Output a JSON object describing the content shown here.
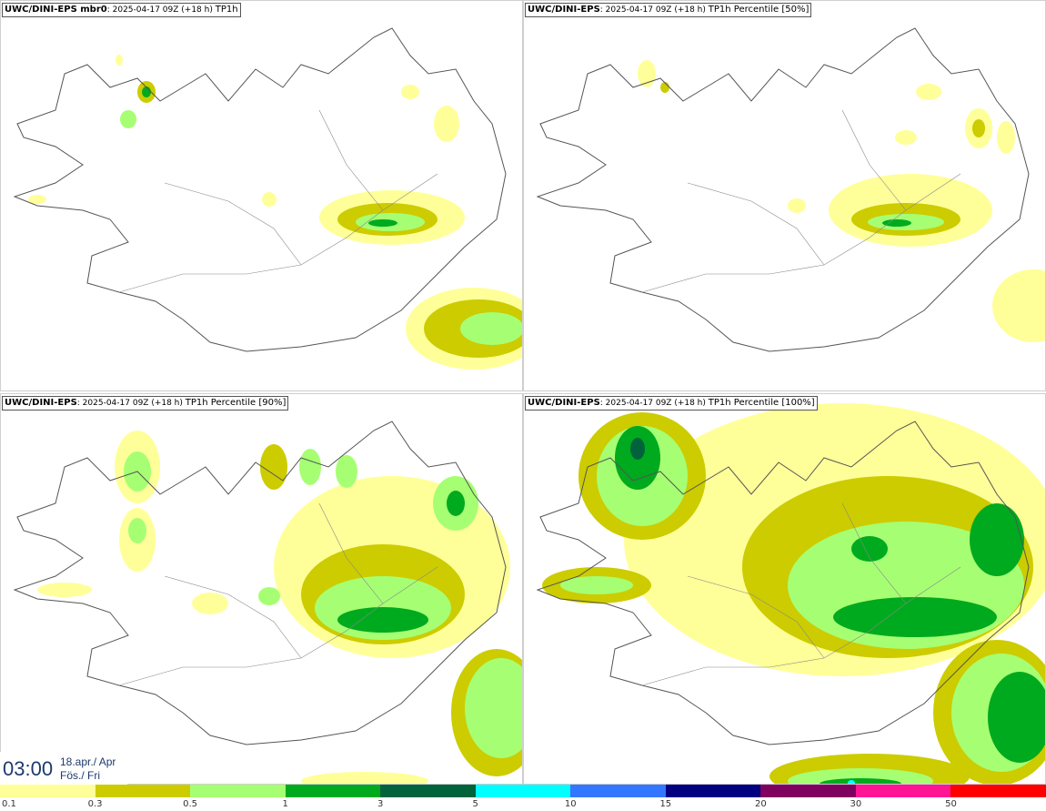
{
  "panels": [
    {
      "model": "UWC/DINI-EPS mbr0",
      "run": "2025-04-17 09Z (+18 h)",
      "param": "TP1h"
    },
    {
      "model": "UWC/DINI-EPS",
      "run": "2025-04-17 09Z (+18 h)",
      "param": "TP1h Percentile [50%]"
    },
    {
      "model": "UWC/DINI-EPS",
      "run": "2025-04-17 09Z (+18 h)",
      "param": "TP1h Percentile [90%]"
    },
    {
      "model": "UWC/DINI-EPS",
      "run": "2025-04-17 09Z (+18 h)",
      "param": "TP1h Percentile [100%]"
    }
  ],
  "valid_time": {
    "time": "03:00",
    "date_line1": "18.apr./ Apr",
    "date_line2": "Fös./ Fri"
  },
  "legend": {
    "ticks": [
      "0.1",
      "0.3",
      "0.5",
      "1",
      "3",
      "5",
      "10",
      "15",
      "20",
      "30",
      "50"
    ],
    "colors": [
      "#ffff99",
      "#cccc00",
      "#a6ff73",
      "#00aa1e",
      "#00633c",
      "#00ffff",
      "#3377ff",
      "#000080",
      "#800060",
      "#ff1493",
      "#ff0000"
    ]
  },
  "map_colors": {
    "light": "#ffff99",
    "olive": "#cccc00",
    "lightgreen": "#a6ff73",
    "green": "#00aa1e",
    "darkgreen": "#00633c"
  }
}
